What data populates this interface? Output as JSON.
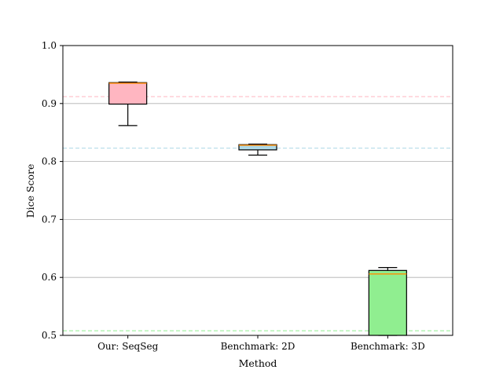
{
  "chart_data": {
    "type": "box",
    "title": "",
    "xlabel": "Method",
    "ylabel": "Dice Score",
    "ylim": [
      0.5,
      1.0
    ],
    "yticks": [
      0.5,
      0.6,
      0.7,
      0.8,
      0.9,
      1.0
    ],
    "ytick_labels": [
      "0.5",
      "0.6",
      "0.7",
      "0.8",
      "0.9",
      "1.0"
    ],
    "grid": "horizontal",
    "categories": [
      "Our: SeqSeg",
      "Benchmark: 2D",
      "Benchmark: 3D"
    ],
    "boxes": [
      {
        "category": "Our: SeqSeg",
        "whisker_low": 0.862,
        "q1": 0.899,
        "median": 0.935,
        "q3": 0.936,
        "whisker_high": 0.937,
        "fill": "#ffb6c1"
      },
      {
        "category": "Benchmark: 2D",
        "whisker_low": 0.811,
        "q1": 0.82,
        "median": 0.828,
        "q3": 0.829,
        "whisker_high": 0.83,
        "fill": "#add8e6"
      },
      {
        "category": "Benchmark: 3D",
        "whisker_low": 0.5,
        "q1": 0.5,
        "median": 0.606,
        "q3": 0.612,
        "whisker_high": 0.617,
        "fill": "#90ee90"
      }
    ],
    "reference_lines": [
      {
        "value": 0.912,
        "color": "#ffb6c1"
      },
      {
        "value": 0.823,
        "color": "#add8e6"
      },
      {
        "value": 0.508,
        "color": "#90ee90"
      }
    ],
    "median_color": "#ff8c00"
  }
}
